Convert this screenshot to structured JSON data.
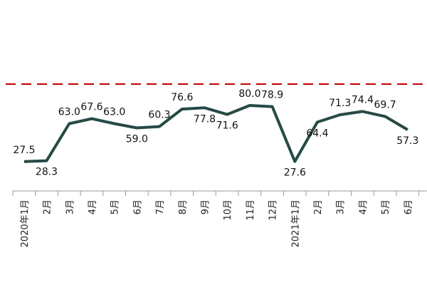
{
  "chart_data": {
    "type": "line",
    "categories": [
      "2020年1月",
      "2月",
      "3月",
      "4月",
      "5月",
      "6月",
      "7月",
      "8月",
      "9月",
      "10月",
      "11月",
      "12月",
      "2021年1月",
      "2月",
      "3月",
      "4月",
      "5月",
      "6月"
    ],
    "series": [
      {
        "values": [
          27.5,
          28.3,
          63.0,
          67.6,
          63.0,
          59.0,
          60.3,
          76.6,
          77.8,
          71.6,
          80.0,
          78.9,
          27.6,
          64.4,
          71.3,
          74.4,
          69.7,
          57.3
        ],
        "data_labels": [
          "27.5",
          "28.3",
          "63.0",
          "67.6",
          "63.0",
          "59.0",
          "60.3",
          "76.6",
          "77.8",
          "71.6",
          "80.0",
          "78.9",
          "27.6",
          "64.4",
          "71.3",
          "74.4",
          "69.7",
          "57.3"
        ],
        "color": "#264a46"
      }
    ],
    "reference_line": {
      "value": 100,
      "style": "dashed",
      "color": "#c00000"
    },
    "ylim": [
      0,
      125
    ],
    "grid": false,
    "legend": "none",
    "x_tick_rotation": -90
  }
}
